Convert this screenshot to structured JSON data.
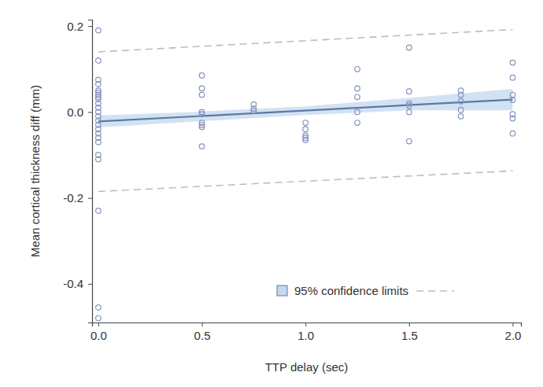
{
  "chart_data": {
    "type": "scatter",
    "x_label": "TTP delay (sec)",
    "y_label": "Mean cortical thickness diff (mm)",
    "xlim": [
      -0.03,
      2.04
    ],
    "ylim": [
      -0.49,
      0.215
    ],
    "xticks": [
      {
        "value": 0,
        "label": "0.0"
      },
      0.5,
      {
        "value": 1,
        "label": "1.0"
      },
      1.5,
      {
        "value": 2,
        "label": "2.0"
      }
    ],
    "yticks": [
      -0.4,
      -0.2,
      {
        "value": 0,
        "label": "0.0"
      },
      0.2
    ],
    "grid": false,
    "legend": "lower right",
    "series": [
      {
        "type": "scatter",
        "marker": "circle",
        "color": "#8495bd",
        "x": [
          0,
          0,
          0,
          0,
          0,
          0,
          0,
          0,
          0,
          0,
          0,
          0,
          0,
          0,
          0,
          0,
          0,
          0,
          0,
          0,
          0,
          0,
          0,
          0,
          0.5,
          0.5,
          0.5,
          0.5,
          0.5,
          0.5,
          0.5,
          0.5,
          0.5,
          0.75,
          0.75,
          0.75,
          1,
          1,
          1,
          1,
          1,
          1.25,
          1.25,
          1.25,
          1.25,
          1.25,
          1.5,
          1.5,
          1.5,
          1.5,
          1.5,
          1.5,
          1.75,
          1.75,
          1.75,
          1.75,
          1.75,
          2,
          2,
          2,
          2,
          2,
          2,
          2
        ],
        "values": [
          0.19,
          0.12,
          0.075,
          0.065,
          0.05,
          0.045,
          0.04,
          0.035,
          0.03,
          0.02,
          0.01,
          0.0,
          -0.01,
          -0.02,
          -0.03,
          -0.04,
          -0.05,
          -0.06,
          -0.07,
          -0.1,
          -0.11,
          -0.23,
          -0.455,
          -0.48,
          0.085,
          0.055,
          0.04,
          0.0,
          -0.005,
          -0.025,
          -0.03,
          -0.035,
          -0.08,
          0.018,
          0.008,
          0.003,
          -0.025,
          -0.04,
          -0.055,
          -0.06,
          -0.065,
          0.1,
          0.055,
          0.035,
          0.0,
          -0.025,
          0.15,
          0.048,
          0.02,
          0.015,
          0.0,
          -0.068,
          0.05,
          0.04,
          0.025,
          0.005,
          -0.01,
          0.115,
          0.08,
          0.04,
          0.028,
          -0.005,
          -0.015,
          -0.05
        ]
      },
      {
        "type": "band",
        "name": "95% confidence limits",
        "color": "#c4d8ee",
        "x": [
          0,
          0.5,
          1,
          1.5,
          2
        ],
        "lower": [
          -0.036,
          -0.021,
          -0.007,
          0.004,
          0.004
        ],
        "upper": [
          -0.008,
          0.001,
          0.013,
          0.033,
          0.054
        ]
      },
      {
        "type": "line",
        "line_style": "solid",
        "color": "#5a7aa6",
        "x": [
          0,
          2
        ],
        "values": [
          -0.022,
          0.029
        ]
      },
      {
        "type": "line",
        "line_style": "dashed",
        "color": "#b9bccb",
        "x": [
          0,
          2
        ],
        "values": [
          0.14,
          0.192
        ]
      },
      {
        "type": "line",
        "line_style": "dashed",
        "color": "#b9bccb",
        "x": [
          0,
          2
        ],
        "values": [
          -0.185,
          -0.137
        ]
      }
    ]
  }
}
